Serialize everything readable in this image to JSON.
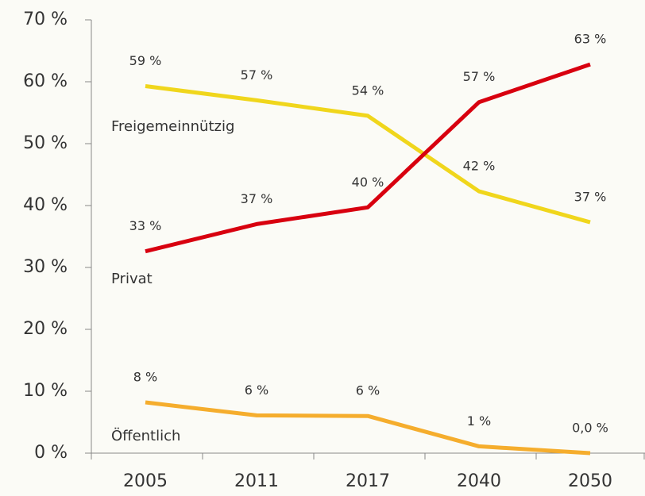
{
  "chart_data": {
    "type": "line",
    "categories": [
      "2005",
      "2011",
      "2017",
      "2040",
      "2050"
    ],
    "series": [
      {
        "name": "Freigemeinnützig",
        "color": "#f0d61c",
        "values": [
          59.3,
          57,
          54.5,
          42.3,
          37.3
        ],
        "value_labels": [
          "59 %",
          "57 %",
          "54 %",
          "42 %",
          "37 %"
        ]
      },
      {
        "name": "Privat",
        "color": "#d8000f",
        "values": [
          32.6,
          37,
          39.7,
          56.7,
          62.8
        ],
        "value_labels": [
          "33 %",
          "37 %",
          "40 %",
          "57 %",
          "63 %"
        ]
      },
      {
        "name": "Öffentlich",
        "color": "#f5ad2d",
        "values": [
          8.2,
          6.1,
          6.0,
          1.1,
          0.0
        ],
        "value_labels": [
          "8 %",
          "6 %",
          "6 %",
          "1 %",
          "0,0 %"
        ]
      }
    ],
    "ylim": [
      0,
      70
    ],
    "yticks": [
      {
        "value": 0,
        "label": "0 %"
      },
      {
        "value": 10,
        "label": "10 %"
      },
      {
        "value": 20,
        "label": "20 %"
      },
      {
        "value": 30,
        "label": "30 %"
      },
      {
        "value": 40,
        "label": "40 %"
      },
      {
        "value": 50,
        "label": "50 %"
      },
      {
        "value": 60,
        "label": "60 %"
      },
      {
        "value": 70,
        "label": "70 %"
      }
    ],
    "grid": false
  }
}
